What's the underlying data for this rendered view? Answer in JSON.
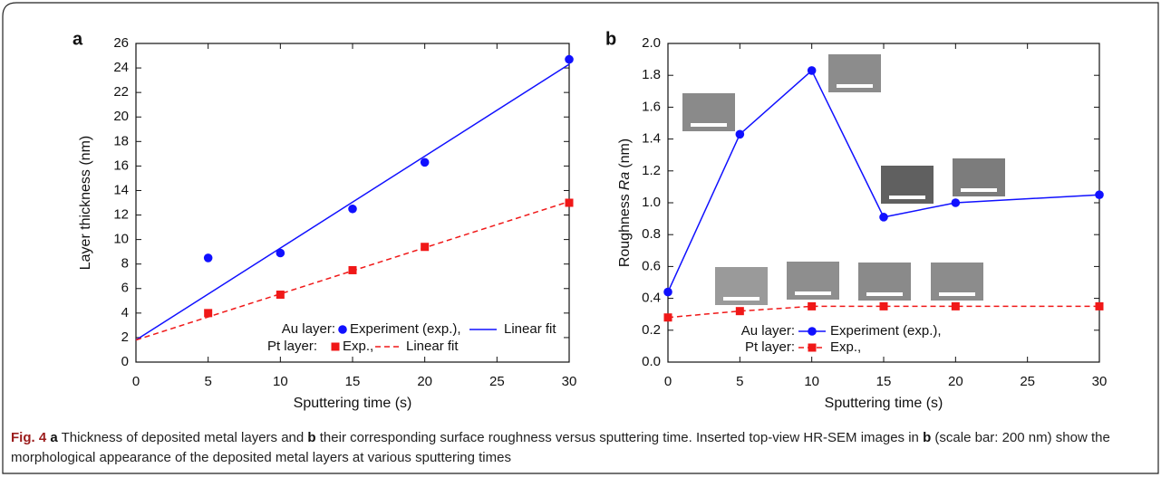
{
  "chart_data": [
    {
      "type": "scatter-line",
      "panel": "a",
      "xlabel": "Sputtering time (s)",
      "ylabel": [
        "Layer thickness (nm)"
      ],
      "xlim": [
        0,
        30
      ],
      "xticks": [
        0,
        5,
        10,
        15,
        20,
        25,
        30
      ],
      "ylim": [
        0,
        26
      ],
      "yticks": [
        0,
        2,
        4,
        6,
        8,
        10,
        12,
        14,
        16,
        18,
        20,
        22,
        24,
        26
      ],
      "legend_groups": [
        "Au layer:",
        "Pt layer:"
      ],
      "series": [
        {
          "name": "Experiment (exp.),",
          "color": "#1010ff",
          "mode": "markers",
          "marker": "circle",
          "x": [
            5,
            10,
            15,
            20,
            30
          ],
          "values": [
            8.5,
            8.9,
            12.5,
            16.3,
            24.7
          ]
        },
        {
          "name": "Linear fit",
          "color": "#1010ff",
          "mode": "line",
          "x": [
            0,
            30
          ],
          "values": [
            1.8,
            24.3
          ]
        },
        {
          "name": "Exp.,",
          "color": "#f01818",
          "mode": "markers",
          "marker": "square",
          "x": [
            5,
            10,
            15,
            20,
            30
          ],
          "values": [
            4.0,
            5.5,
            7.5,
            9.4,
            13.0
          ]
        },
        {
          "name": "Linear fit",
          "color": "#f01818",
          "mode": "line",
          "dash": true,
          "x": [
            0,
            30
          ],
          "values": [
            1.8,
            13.1
          ]
        }
      ]
    },
    {
      "type": "scatter-line",
      "panel": "b",
      "xlabel": "Sputtering time (s)",
      "ylabel": [
        "Roughness",
        "Ra",
        "(nm)"
      ],
      "xlim": [
        0,
        30
      ],
      "xticks": [
        0,
        5,
        10,
        15,
        20,
        25,
        30
      ],
      "ylim": [
        0,
        2
      ],
      "yticks": [
        {
          "value": 0,
          "label": "0.0"
        },
        {
          "value": 0.2,
          "label": "0.2"
        },
        {
          "value": 0.4,
          "label": "0.4"
        },
        {
          "value": 0.6,
          "label": "0.6"
        },
        {
          "value": 0.8,
          "label": "0.8"
        },
        {
          "value": 1,
          "label": "1.0"
        },
        {
          "value": 1.2,
          "label": "1.2"
        },
        {
          "value": 1.4,
          "label": "1.4"
        },
        {
          "value": 1.6,
          "label": "1.6"
        },
        {
          "value": 1.8,
          "label": "1.8"
        },
        {
          "value": 2,
          "label": "2.0"
        }
      ],
      "legend_groups": [
        "Au layer:",
        "Pt layer:"
      ],
      "series": [
        {
          "name": "Experiment (exp.),",
          "color": "#1010ff",
          "mode": "lines+markers",
          "marker": "circle",
          "x": [
            0,
            5,
            10,
            15,
            20,
            30
          ],
          "values": [
            0.44,
            1.43,
            1.83,
            0.91,
            1.0,
            1.05
          ]
        },
        {
          "name": "Exp.,",
          "color": "#f01818",
          "mode": "lines+markers",
          "marker": "square",
          "dash": true,
          "x": [
            0,
            5,
            10,
            15,
            20,
            30
          ],
          "values": [
            0.28,
            0.32,
            0.35,
            0.35,
            0.35,
            0.35
          ]
        }
      ]
    }
  ],
  "caption": [
    "Fig. 4",
    "a",
    "Thickness of deposited metal layers and",
    "b",
    "their corresponding surface roughness versus sputtering time. Inserted top-view HR-SEM images in",
    "b",
    "(scale bar: 200 nm) show the morphological appearance of the deposited metal layers at various sputtering times"
  ]
}
